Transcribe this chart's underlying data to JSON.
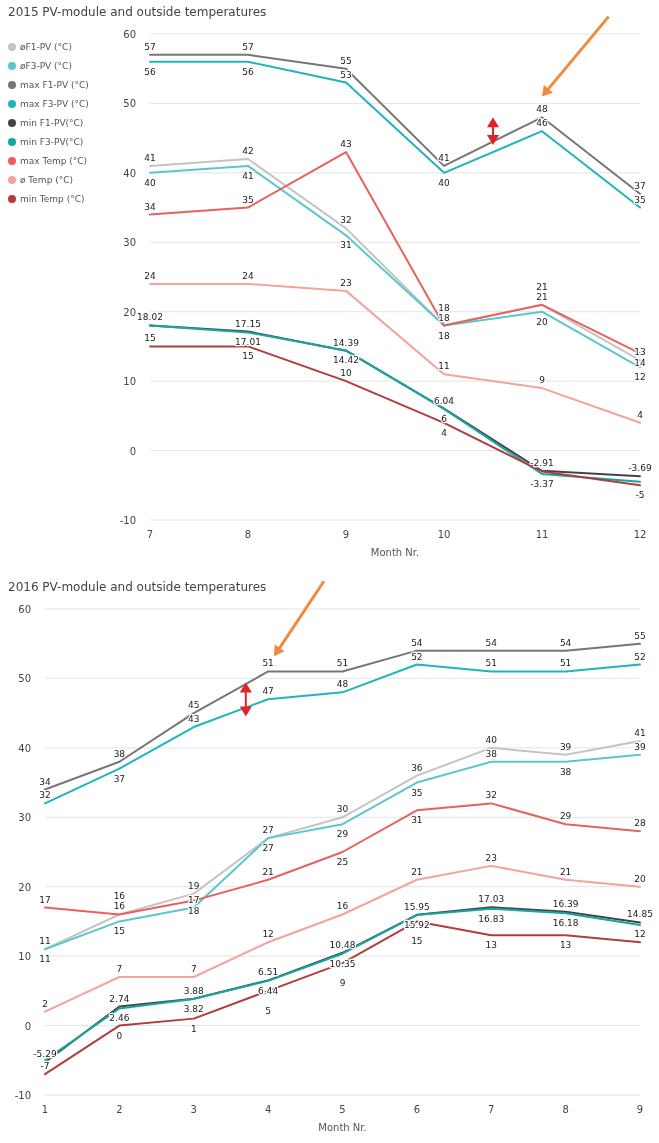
{
  "chart_data": [
    {
      "type": "line",
      "title": "2015 PV-module and outside temperatures",
      "xlabel": "Month Nr.",
      "x": [
        7,
        8,
        9,
        10,
        11,
        12
      ],
      "xlim": [
        7,
        12
      ],
      "xticks": [
        7,
        8,
        9,
        10,
        11,
        12
      ],
      "ylim": [
        -10,
        60
      ],
      "yticks": [
        -10,
        0,
        10,
        20,
        30,
        40,
        50,
        60
      ],
      "grid": "y",
      "legend": "top left",
      "series": [
        {
          "name": "øF1-PV (°C)",
          "color": "#c4c4c4",
          "values": [
            41,
            42,
            32,
            18,
            21,
            13
          ],
          "value_labels": [
            "41",
            "42",
            "32",
            "18",
            "21",
            "13"
          ]
        },
        {
          "name": "øF3-PV (°C)",
          "color": "#5cc6d0",
          "values": [
            40,
            41,
            31,
            18,
            20,
            12
          ],
          "value_labels": [
            "40",
            "41",
            "31",
            "18",
            "20",
            "12"
          ]
        },
        {
          "name": "max F1-PV (°C)",
          "color": "#767676",
          "values": [
            57,
            57,
            55,
            41,
            48,
            37
          ],
          "value_labels": [
            "57",
            "57",
            "55",
            "41",
            "48",
            "37"
          ]
        },
        {
          "name": "max F3-PV (°C)",
          "color": "#1fb4be",
          "values": [
            56,
            56,
            53,
            40,
            46,
            35
          ],
          "value_labels": [
            "56",
            "56",
            "53",
            "40",
            "46",
            "35"
          ]
        },
        {
          "name": "min F1-PV(°C)",
          "color": "#444444",
          "values": [
            18.02,
            17.15,
            14.39,
            6.04,
            -2.91,
            -3.69
          ],
          "value_labels": [
            "18.02",
            "17.15",
            "14.39",
            "6.04",
            "-2.91",
            "-3.69"
          ]
        },
        {
          "name": "min F3-PV(°C)",
          "color": "#17a5a5",
          "values": [
            18,
            17.01,
            14.42,
            6,
            -3.37,
            -4.5
          ],
          "value_labels": [
            null,
            "17.01",
            "14.42",
            "6",
            "-3.37",
            null
          ]
        },
        {
          "name": "max Temp (°C)",
          "color": "#e8625c",
          "values": [
            34,
            35,
            43,
            18,
            21,
            14
          ],
          "value_labels": [
            "34",
            "35",
            "43",
            "18",
            "21",
            "14"
          ]
        },
        {
          "name": "ø Temp (°C)",
          "color": "#f4a39c",
          "values": [
            24,
            24,
            23,
            11,
            9,
            4
          ],
          "value_labels": [
            "24",
            "24",
            "23",
            "11",
            "9",
            "4"
          ]
        },
        {
          "name": "min Temp (°C)",
          "color": "#b23c3e",
          "values": [
            15,
            15,
            10,
            4,
            -3,
            -5
          ],
          "value_labels": [
            "15",
            "15",
            "10",
            "4",
            null,
            "-5"
          ]
        }
      ]
    },
    {
      "type": "line",
      "title": "2016 PV-module and outside temperatures",
      "xlabel": "Month Nr.",
      "x": [
        1,
        2,
        3,
        4,
        5,
        6,
        7,
        8,
        9
      ],
      "xlim": [
        1,
        9
      ],
      "xticks": [
        1,
        2,
        3,
        4,
        5,
        6,
        7,
        8,
        9
      ],
      "ylim": [
        -10,
        60
      ],
      "yticks": [
        -10,
        0,
        10,
        20,
        30,
        40,
        50,
        60
      ],
      "grid": "y",
      "series": [
        {
          "color": "#c4c4c4",
          "values": [
            11,
            16,
            19,
            27,
            30,
            36,
            40,
            39,
            41
          ],
          "value_labels": [
            "11",
            "16",
            "19",
            "27",
            "30",
            "36",
            "40",
            "39",
            "41"
          ]
        },
        {
          "color": "#5cc6d0",
          "values": [
            11,
            15,
            17,
            27,
            29,
            35,
            38,
            38,
            39
          ],
          "value_labels": [
            "11",
            "15",
            "17",
            "27",
            "29",
            "35",
            "38",
            "38",
            "39"
          ]
        },
        {
          "color": "#767676",
          "values": [
            34,
            38,
            45,
            51,
            51,
            54,
            54,
            54,
            55
          ],
          "value_labels": [
            "34",
            "38",
            "45",
            "51",
            "51",
            "54",
            "54",
            "54",
            "55"
          ]
        },
        {
          "color": "#1fb4be",
          "values": [
            32,
            37,
            43,
            47,
            48,
            52,
            51,
            51,
            52
          ],
          "value_labels": [
            "32",
            "37",
            "43",
            "47",
            "48",
            "52",
            "51",
            "51",
            "52"
          ]
        },
        {
          "color": "#444444",
          "values": [
            -5.29,
            2.74,
            3.88,
            6.51,
            10.48,
            15.95,
            17.03,
            16.39,
            14.85
          ],
          "value_labels": [
            "-5.29",
            "2.74",
            "3.88",
            "6.51",
            "10.48",
            "15.95",
            "17.03",
            "16.39",
            "14.85"
          ]
        },
        {
          "color": "#17a5a5",
          "values": [
            -5,
            2.46,
            3.82,
            6.44,
            10.35,
            15.92,
            16.83,
            16.18,
            14.5
          ],
          "value_labels": [
            null,
            "2.46",
            "3.82",
            "6.44",
            "10.35",
            "15.92",
            "16.83",
            "16.18",
            null
          ]
        },
        {
          "color": "#e8625c",
          "values": [
            17,
            16,
            18,
            21,
            25,
            31,
            32,
            29,
            28
          ],
          "value_labels": [
            "17",
            "16",
            "18",
            "21",
            "25",
            "31",
            "32",
            "29",
            "28"
          ]
        },
        {
          "color": "#f4a39c",
          "values": [
            2,
            7,
            7,
            12,
            16,
            21,
            23,
            21,
            20
          ],
          "value_labels": [
            "2",
            "7",
            "7",
            "12",
            "16",
            "21",
            "23",
            "21",
            "20"
          ]
        },
        {
          "color": "#b23c3e",
          "values": [
            -7,
            0,
            1,
            5,
            9,
            15,
            13,
            13,
            12
          ],
          "value_labels": [
            "-7",
            "0",
            "1",
            "5",
            "9",
            "15",
            "13",
            "13",
            "12"
          ]
        }
      ]
    }
  ]
}
